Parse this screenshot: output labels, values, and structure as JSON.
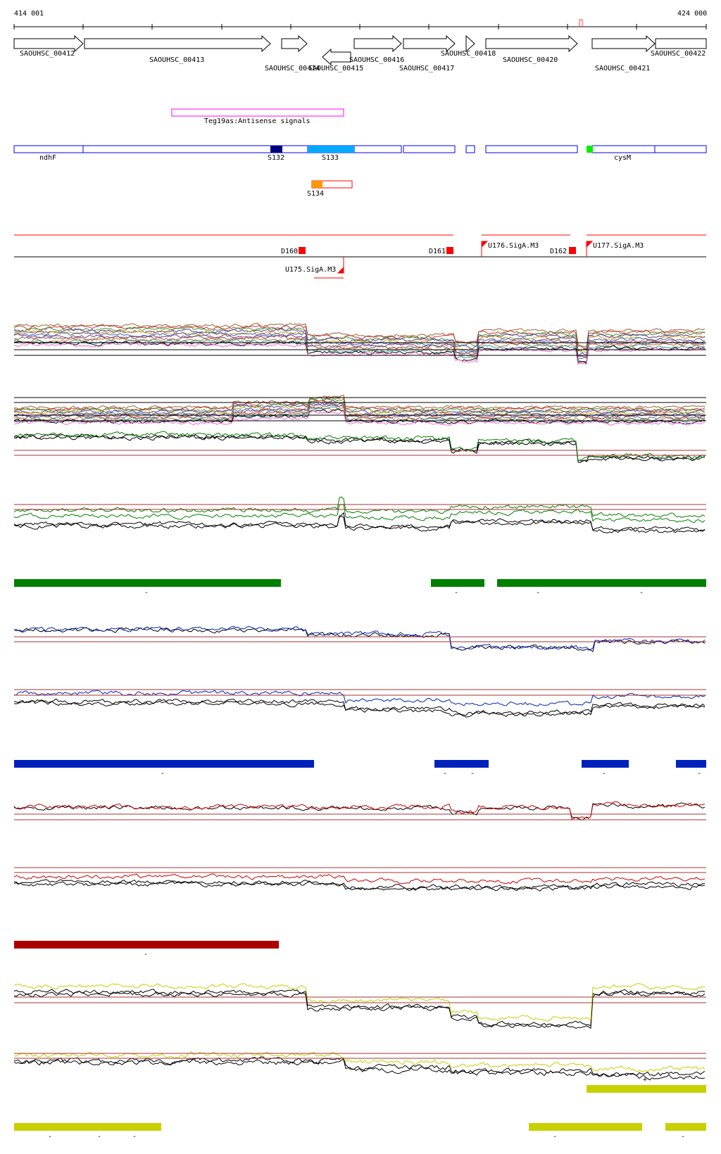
{
  "header": {
    "start_label": "414 001",
    "end_label": "424 000"
  },
  "genes": [
    {
      "label": "SAOUHSC_00412",
      "strand": "+"
    },
    {
      "label": "SAOUHSC_00413",
      "strand": "+"
    },
    {
      "label": "SAOUHSC_00414",
      "strand": "+"
    },
    {
      "label": "SAOUHSC_00415",
      "strand": "-"
    },
    {
      "label": "SAOUHSC_00416",
      "strand": "+"
    },
    {
      "label": "SAOUHSC_00417",
      "strand": "+"
    },
    {
      "label": "SAOUHSC_00418",
      "strand": "+"
    },
    {
      "label": "SAOUHSC_00420",
      "strand": "+"
    },
    {
      "label": "SAOUHSC_00421",
      "strand": "+"
    },
    {
      "label": "SAOUHSC_00422",
      "strand": "+"
    }
  ],
  "antisense": {
    "label": "Teg19as:Antisense signals"
  },
  "annotations": {
    "ndhF": "ndhF",
    "cysM": "cysM",
    "S132": "S132",
    "S133": "S133",
    "S134": "S134"
  },
  "promoters": [
    "D160",
    "D161",
    "U176.SigA.M3",
    "D162",
    "U177.SigA.M3",
    "U175.SigA.M3"
  ],
  "segments": [
    {
      "color": "#008000",
      "marks": [
        "-",
        "-",
        "-",
        "-"
      ]
    },
    {
      "color": "#0022bb",
      "marks": [
        "-",
        "-",
        "-",
        "-",
        "-"
      ]
    },
    {
      "color": "#aa0000",
      "marks": [
        "-"
      ]
    },
    {
      "color": "#c8d000",
      "marks": [
        "+",
        "-",
        "-",
        "-",
        "-",
        "-"
      ]
    }
  ],
  "colors": {
    "gene": "#000000",
    "antisense": "#ff00ff",
    "region": "#0000ff",
    "s132": "#000080",
    "s133": "#00aaff",
    "s134": "#ff9900",
    "cys": "#00ee00",
    "promoter": "#ff0000",
    "green": "#008000",
    "blue": "#0022bb",
    "red": "#cc0000",
    "yellow": "#c8d000"
  }
}
